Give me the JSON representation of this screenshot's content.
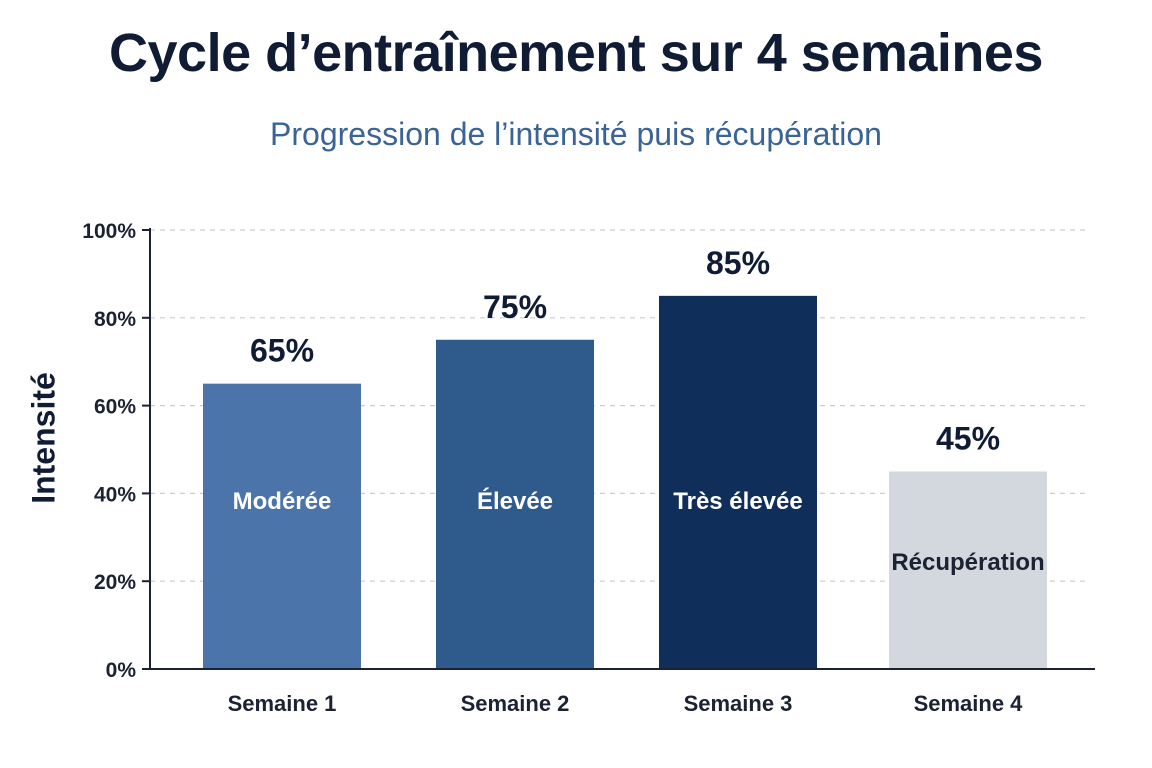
{
  "chart_data": {
    "type": "bar",
    "title": "Cycle d’entraînement sur 4 semaines",
    "subtitle": "Progression de l’intensité puis récupération",
    "xlabel": "",
    "ylabel": "Intensité",
    "categories": [
      "Semaine 1",
      "Semaine 2",
      "Semaine 3",
      "Semaine 4"
    ],
    "values": [
      65,
      75,
      85,
      45
    ],
    "value_labels": [
      "65%",
      "75%",
      "85%",
      "45%"
    ],
    "bar_labels": [
      "Modérée",
      "Élevée",
      "Très élevée",
      "Récupération"
    ],
    "bar_colors": [
      "#4a74aa",
      "#2e5a8c",
      "#0f2e5a",
      "#d3d8df"
    ],
    "bar_label_colors": [
      "#ffffff",
      "#ffffff",
      "#ffffff",
      "#1a2233"
    ],
    "ylim": [
      0,
      100
    ],
    "yticks": [
      0,
      20,
      40,
      60,
      80,
      100
    ],
    "ytick_labels": [
      "0%",
      "20%",
      "40%",
      "60%",
      "80%",
      "100%"
    ],
    "grid": true,
    "legend": "none"
  }
}
